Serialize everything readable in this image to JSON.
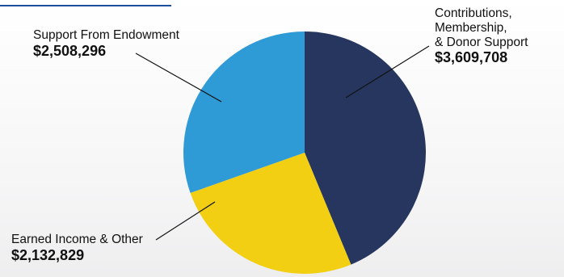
{
  "chart_data": {
    "type": "pie",
    "slices": [
      {
        "label": [
          "Contributions,",
          "Membership,",
          "& Donor Support"
        ],
        "value": 3609708,
        "value_label": "$3,609,708",
        "color": "#26365f"
      },
      {
        "label": [
          "Earned Income & Other"
        ],
        "value": 2132829,
        "value_label": "$2,132,829",
        "color": "#f2cf13"
      },
      {
        "label": [
          "Support From Endowment"
        ],
        "value": 2508296,
        "value_label": "$2,508,296",
        "color": "#2e9ad6"
      }
    ],
    "start_angle_deg": 0,
    "direction": "clockwise"
  }
}
